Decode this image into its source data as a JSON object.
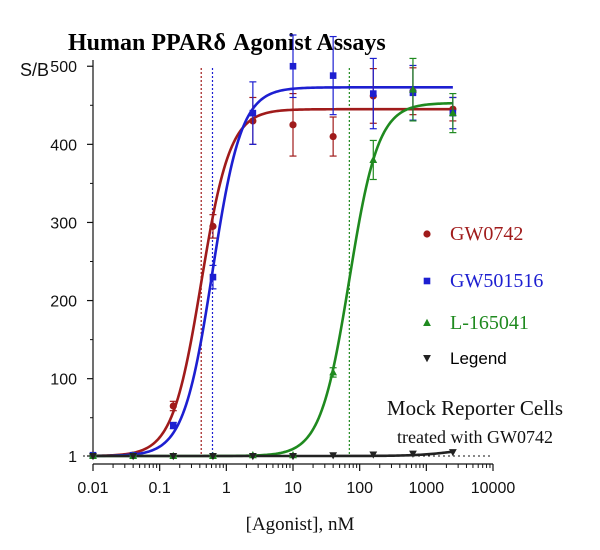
{
  "chart_data": {
    "type": "scatter",
    "title_bold": "Human PPARδ",
    "title_rest": "Agonist Assays",
    "ylabel": "S/B",
    "xlabel": "[Agonist], nM",
    "x_scale": "log",
    "xlim": [
      0.01,
      10000
    ],
    "ylim": [
      0,
      540
    ],
    "x_tick_labels": [
      "0.01",
      "0.1",
      "1",
      "10",
      "100",
      "1000",
      "10000"
    ],
    "y_tick_labels": [
      "1",
      "100",
      "200",
      "300",
      "400",
      "500"
    ],
    "grid": false,
    "legend_position": "right",
    "annotation_line1": "Mock Reporter Cells",
    "annotation_line2": "treated with GW0742",
    "series": [
      {
        "name": "GW0742",
        "color": "#a01b1b",
        "marker": "circle",
        "ec50_line": 0.42,
        "fit": {
          "bottom": 1,
          "top": 445,
          "ec50": 0.42,
          "hill": 2.0
        },
        "x": [
          0.01,
          0.04,
          0.16,
          0.63,
          2.5,
          10,
          40,
          160,
          630,
          2500
        ],
        "y": [
          2,
          2,
          65,
          295,
          430,
          425,
          410,
          462,
          468,
          445
        ],
        "err": [
          2,
          2,
          6,
          15,
          30,
          40,
          25,
          35,
          30,
          15
        ]
      },
      {
        "name": "GW501516",
        "color": "#1d1fd1",
        "marker": "square",
        "ec50_line": 0.62,
        "fit": {
          "bottom": 1,
          "top": 473,
          "ec50": 0.62,
          "hill": 2.0
        },
        "x": [
          0.01,
          0.04,
          0.16,
          0.63,
          2.5,
          10,
          40,
          160,
          630,
          2500
        ],
        "y": [
          2,
          2,
          40,
          230,
          440,
          500,
          488,
          465,
          466,
          440
        ],
        "err": [
          2,
          2,
          4,
          15,
          40,
          40,
          50,
          45,
          35,
          20
        ]
      },
      {
        "name": "L-165041",
        "color": "#1f8a1f",
        "marker": "triangle-up",
        "ec50_line": 70,
        "fit": {
          "bottom": 1,
          "top": 453,
          "ec50": 70,
          "hill": 2.0
        },
        "x": [
          0.01,
          0.04,
          0.16,
          0.63,
          2.5,
          10,
          40,
          160,
          630,
          2500
        ],
        "y": [
          1,
          1,
          1,
          1,
          2,
          2,
          108,
          380,
          470,
          440
        ],
        "err": [
          1,
          1,
          1,
          1,
          1,
          1,
          6,
          25,
          40,
          25
        ]
      },
      {
        "name": "Legend",
        "color": "#222222",
        "marker": "triangle-down",
        "fit": {
          "bottom": 1,
          "top": 14,
          "ec50": 3000,
          "hill": 1.5
        },
        "x": [
          0.01,
          0.04,
          0.16,
          0.63,
          2.5,
          10,
          40,
          160,
          630,
          2500
        ],
        "y": [
          1,
          1,
          1,
          1,
          1,
          1,
          2,
          3,
          4,
          6
        ],
        "err": [
          0,
          0,
          0,
          0,
          0,
          0,
          0,
          0,
          0,
          0
        ]
      }
    ]
  }
}
